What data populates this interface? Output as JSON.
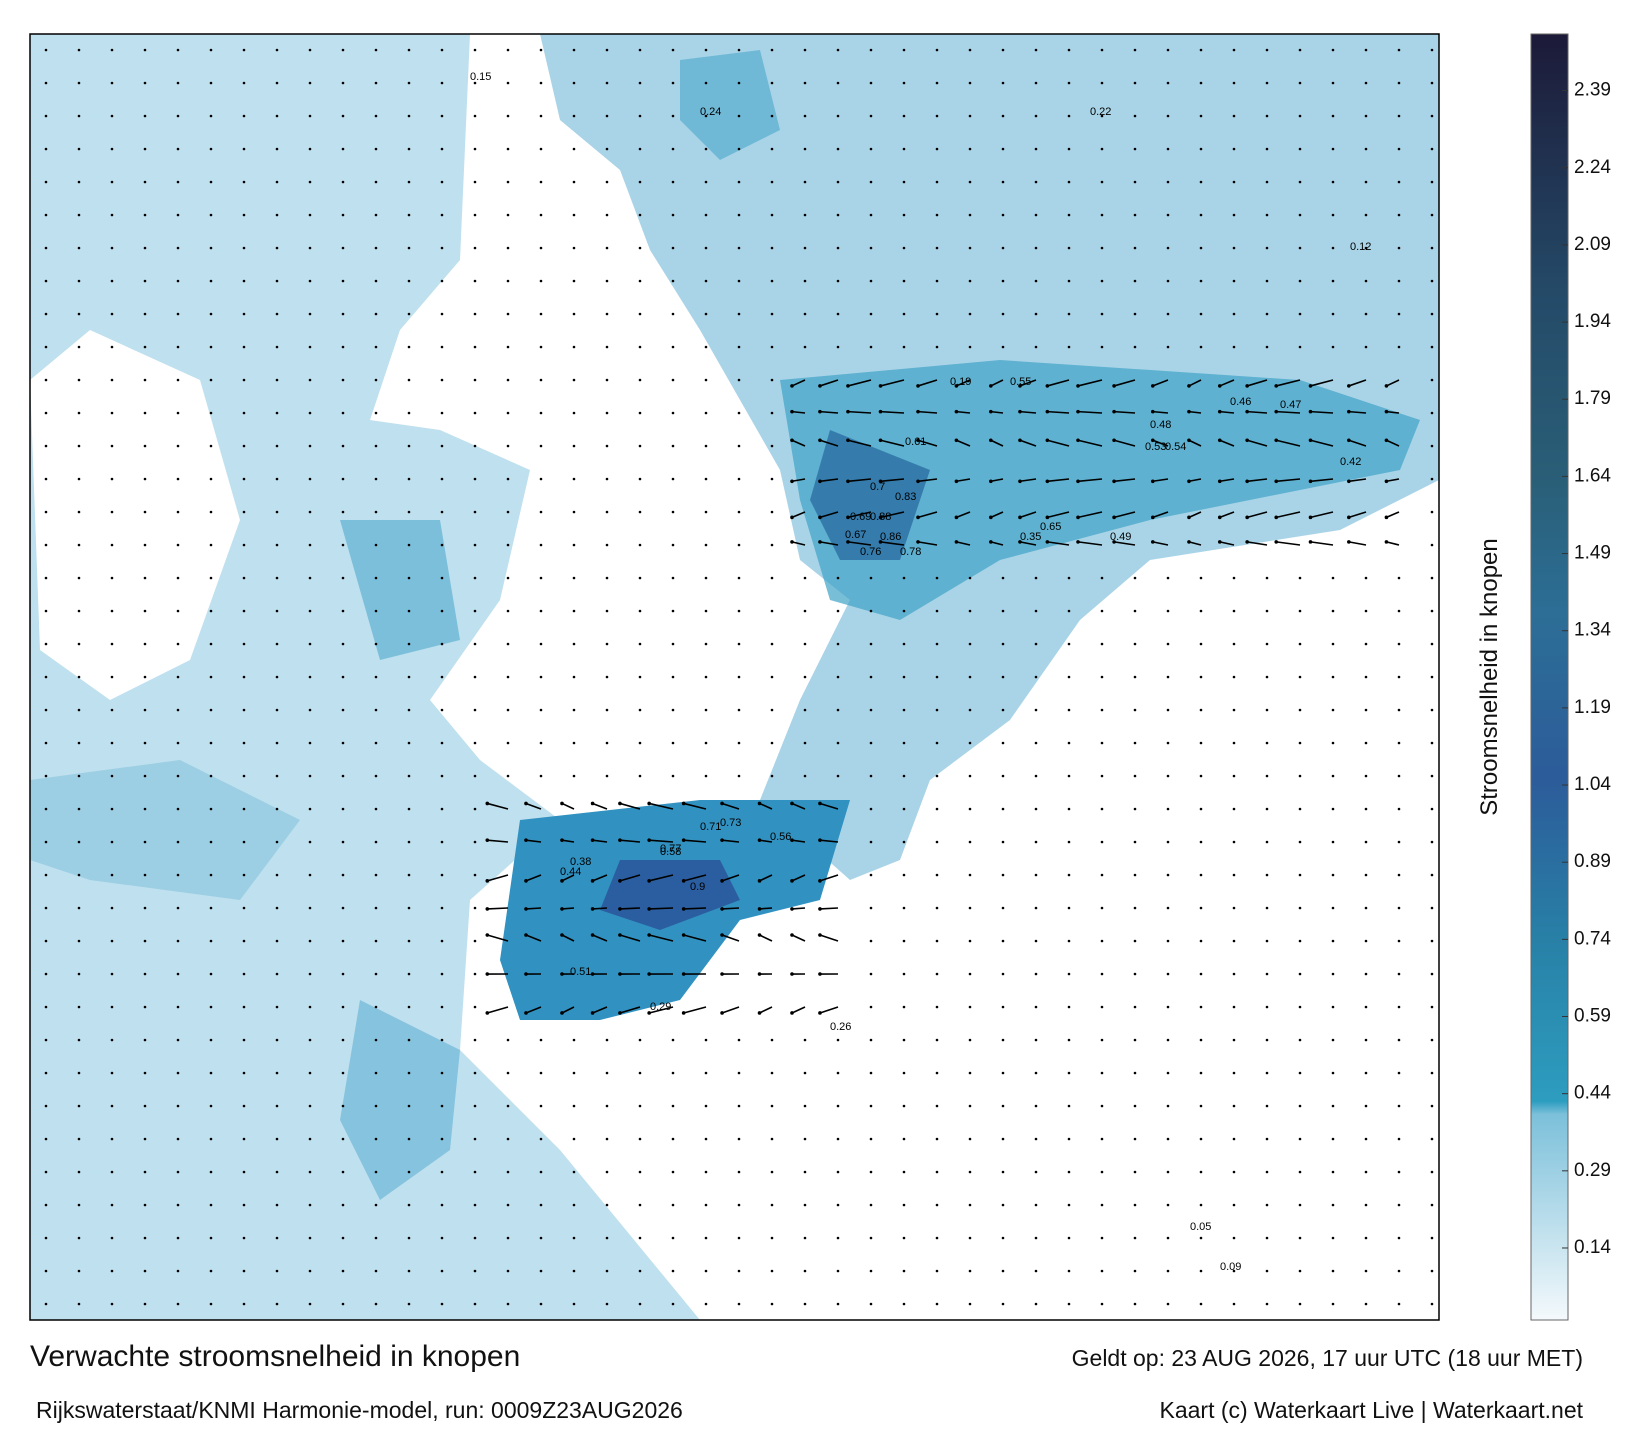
{
  "title": "Verwachte stroomsnelheid in knopen",
  "subtitle": "Rijkswaterstaat/KNMI Harmonie-model, run: 0009Z23AUG2026",
  "valid_time": "Geldt op: 23 AUG 2026, 17 uur UTC (18 uur MET)",
  "credit": "Kaart (c) Waterkaart Live | Waterkaart.net",
  "colorbar": {
    "label": "Stroomsnelheid in knopen",
    "lim": [
      0,
      2.5
    ],
    "ticks": [
      0.14,
      0.29,
      0.44,
      0.59,
      0.74,
      0.89,
      1.04,
      1.19,
      1.34,
      1.49,
      1.64,
      1.79,
      1.94,
      2.09,
      2.24,
      2.39
    ]
  },
  "current_labels": [
    0.88,
    0.86,
    0.83,
    0.78,
    0.76,
    0.7,
    0.69,
    0.67,
    0.65,
    0.61,
    0.55,
    0.54,
    0.53,
    0.49,
    0.48,
    0.47,
    0.46,
    0.42,
    0.37,
    0.35,
    0.29,
    0.26,
    0.24,
    0.22,
    0.19,
    0.15,
    0.12,
    0.09,
    0.05,
    0.9,
    0.77,
    0.73,
    0.71,
    0.58,
    0.56,
    0.51,
    0.44,
    0.38
  ]
}
